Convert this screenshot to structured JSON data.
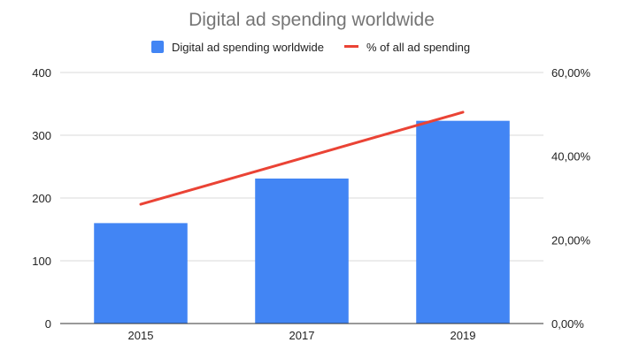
{
  "chart_data": {
    "type": "bar",
    "title": "Digital ad spending worldwide",
    "categories": [
      "2015",
      "2017",
      "2019"
    ],
    "series": [
      {
        "name": "Digital ad spending worldwide",
        "type": "bar",
        "axis": "left",
        "values": [
          160,
          231,
          323
        ],
        "color": "#4285f4"
      },
      {
        "name": "% of all ad spending",
        "type": "line",
        "axis": "right",
        "values": [
          28.5,
          39.5,
          50.5
        ],
        "color": "#ea4335"
      }
    ],
    "y_left": {
      "ylim": [
        0,
        400
      ],
      "ticks": [
        0,
        100,
        200,
        300,
        400
      ],
      "tick_labels": [
        "0",
        "100",
        "200",
        "300",
        "400"
      ]
    },
    "y_right": {
      "ylim": [
        0,
        60
      ],
      "ticks": [
        0,
        20,
        40,
        60
      ],
      "tick_labels": [
        "0,00%",
        "20,00%",
        "40,00%",
        "60,00%"
      ]
    },
    "xlabel": "",
    "ylabel": "",
    "grid": true,
    "legend_position": "top"
  }
}
